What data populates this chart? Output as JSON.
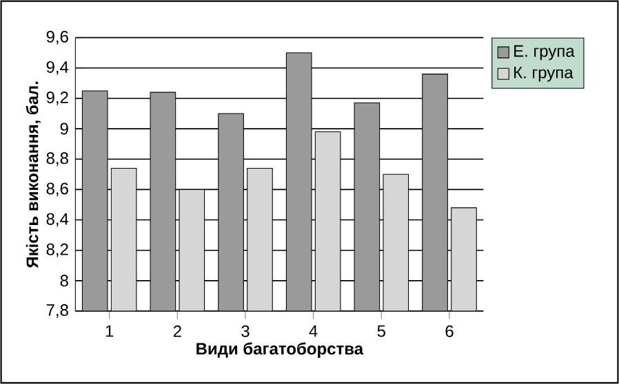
{
  "chart_data": {
    "type": "bar",
    "xlabel": "Види багатоборства",
    "ylabel": "Якість виконання, бал.",
    "categories": [
      "1",
      "2",
      "3",
      "4",
      "5",
      "6"
    ],
    "series": [
      {
        "name": "Е. група",
        "color": "#9a9a9a",
        "values": [
          9.25,
          9.24,
          9.1,
          9.5,
          9.17,
          9.36
        ]
      },
      {
        "name": "К. група",
        "color": "#d6d6d6",
        "values": [
          8.74,
          8.6,
          8.74,
          8.98,
          8.7,
          8.48
        ]
      }
    ],
    "ylim": [
      7.8,
      9.6
    ],
    "yticks": [
      {
        "value": 7.8,
        "label": "7,8"
      },
      8,
      {
        "value": 8.2,
        "label": "8,2"
      },
      {
        "value": 8.4,
        "label": "8,4"
      },
      {
        "value": 8.6,
        "label": "8,6"
      },
      {
        "value": 8.8,
        "label": "8,8"
      },
      9,
      {
        "value": 9.2,
        "label": "9,2"
      },
      {
        "value": 9.4,
        "label": "9,4"
      },
      {
        "value": 9.6,
        "label": "9,6"
      }
    ],
    "grid": "y",
    "legend": "right"
  }
}
